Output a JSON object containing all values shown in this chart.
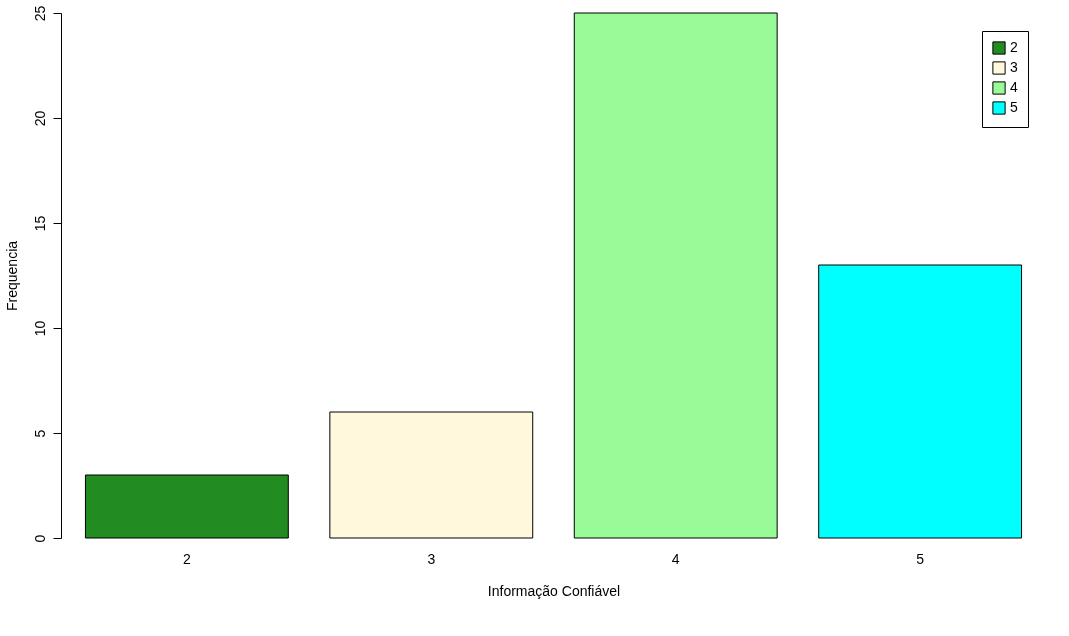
{
  "chart_data": {
    "type": "bar",
    "xlabel": "Informação Confiável",
    "ylabel": "Frequencia",
    "categories": [
      "2",
      "3",
      "4",
      "5"
    ],
    "series": [
      {
        "name": "2",
        "color": "#228b22",
        "values": [
          3,
          null,
          null,
          null
        ]
      },
      {
        "name": "3",
        "color": "#fff8dc",
        "values": [
          null,
          6,
          null,
          null
        ]
      },
      {
        "name": "4",
        "color": "#98fb98",
        "values": [
          null,
          null,
          25,
          null
        ]
      },
      {
        "name": "5",
        "color": "#00ffff",
        "values": [
          null,
          null,
          null,
          13
        ]
      }
    ],
    "ylim": [
      0,
      25
    ],
    "yticks": [
      0,
      5,
      10,
      15,
      20,
      25
    ],
    "grid": false,
    "legend": "top right"
  }
}
